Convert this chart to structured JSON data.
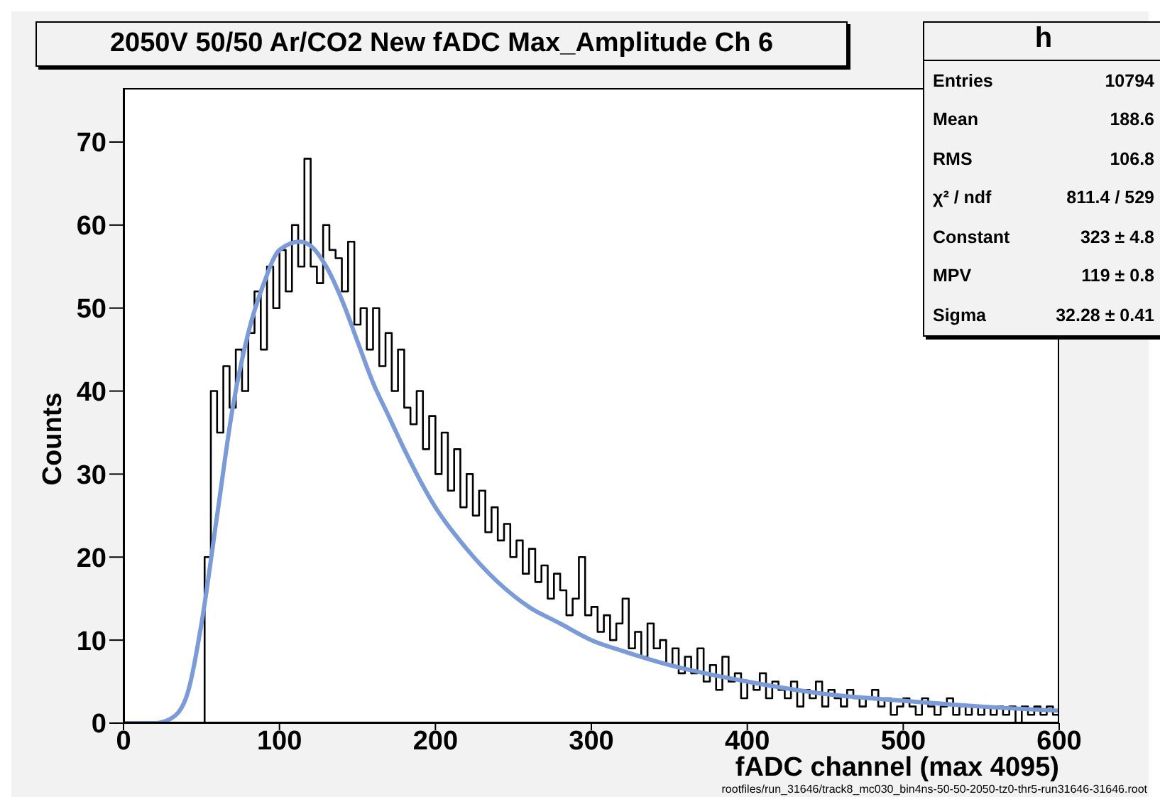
{
  "chart_data": {
    "type": "step",
    "title": "2050V 50/50 Ar/CO2 New fADC Max_Amplitude Ch 6",
    "xlabel": "fADC channel (max 4095)",
    "ylabel": "Counts",
    "xlim": [
      0,
      600
    ],
    "xticks": [
      0,
      100,
      200,
      300,
      400,
      500,
      600
    ],
    "ylim": [
      0,
      76.5
    ],
    "yticks": [
      0,
      10,
      20,
      30,
      40,
      50,
      60,
      70
    ],
    "grid": false,
    "legend": false,
    "series": [
      {
        "type": "step",
        "color": "#000000",
        "x": [
          0,
          48,
          52,
          56,
          60,
          64,
          68,
          72,
          76,
          80,
          84,
          88,
          92,
          96,
          100,
          104,
          108,
          112,
          116,
          120,
          124,
          128,
          132,
          136,
          140,
          144,
          148,
          152,
          156,
          160,
          164,
          168,
          172,
          176,
          180,
          184,
          188,
          192,
          196,
          200,
          204,
          208,
          212,
          216,
          220,
          224,
          228,
          232,
          236,
          240,
          244,
          248,
          252,
          256,
          260,
          264,
          268,
          272,
          276,
          280,
          284,
          288,
          292,
          296,
          300,
          304,
          308,
          312,
          316,
          320,
          324,
          328,
          332,
          336,
          340,
          344,
          348,
          352,
          356,
          360,
          364,
          368,
          372,
          376,
          380,
          384,
          388,
          392,
          396,
          400,
          404,
          408,
          412,
          416,
          420,
          424,
          428,
          432,
          436,
          440,
          444,
          448,
          452,
          456,
          460,
          464,
          468,
          472,
          476,
          480,
          484,
          488,
          492,
          496,
          500,
          504,
          508,
          512,
          516,
          520,
          524,
          528,
          532,
          536,
          540,
          544,
          548,
          552,
          556,
          560,
          564,
          568,
          572,
          576,
          580,
          584,
          588,
          592,
          596,
          600
        ],
        "values": [
          0,
          0,
          20,
          40,
          35,
          43,
          38,
          45,
          40,
          47,
          52,
          45,
          55,
          50,
          57,
          52,
          60,
          55,
          68,
          55,
          53,
          60,
          57,
          56,
          52,
          58,
          48,
          50,
          45,
          50,
          43,
          47,
          40,
          45,
          38,
          36,
          40,
          33,
          37,
          30,
          35,
          28,
          33,
          26,
          30,
          25,
          28,
          23,
          26,
          22,
          24,
          20,
          22,
          18,
          21,
          17,
          19,
          15,
          18,
          16,
          13,
          15,
          20,
          13,
          14,
          11,
          13,
          10,
          12,
          15,
          9,
          11,
          8,
          12,
          9,
          10,
          7,
          9,
          6,
          8,
          6,
          9,
          5,
          7,
          4,
          8,
          5,
          6,
          3,
          5,
          4,
          6,
          3,
          5,
          4,
          3,
          5,
          2,
          4,
          3,
          5,
          2,
          4,
          3,
          2,
          4,
          3,
          2,
          3,
          4,
          2,
          3,
          1,
          2,
          3,
          2,
          1,
          3,
          2,
          1,
          2,
          3,
          1,
          2,
          1,
          2,
          1,
          2,
          1,
          2,
          1,
          2,
          0,
          2,
          1,
          2,
          1,
          2,
          1,
          1
        ]
      },
      {
        "type": "line",
        "color": "#7b9bd8",
        "x": [
          0,
          20,
          30,
          40,
          50,
          60,
          70,
          80,
          90,
          100,
          113,
          120,
          130,
          140,
          150,
          160,
          170,
          180,
          200,
          220,
          240,
          260,
          280,
          300,
          320,
          350,
          400,
          450,
          500,
          550,
          600
        ],
        "values": [
          0,
          0,
          0.5,
          3,
          12,
          25,
          38,
          47,
          53,
          57,
          58,
          57.5,
          55,
          51,
          46,
          41,
          37,
          33,
          26,
          21,
          17,
          14,
          12,
          10,
          8.7,
          7,
          5,
          3.5,
          2.7,
          2,
          1.5
        ]
      }
    ],
    "annotations": [
      "h",
      "Entries\t10794",
      "Mean\t188.6",
      "RMS\t106.8",
      "χ² / ndf\t811.4 / 529",
      "Constant\t323 ± 4.8",
      "MPV\t119 ± 0.8",
      "Sigma\t32.28 ± 0.41",
      "rootfiles/run_31646/track8_mc030_bin4ns-50-50-2050-tz0-thr5-run31646-31646.root"
    ]
  }
}
